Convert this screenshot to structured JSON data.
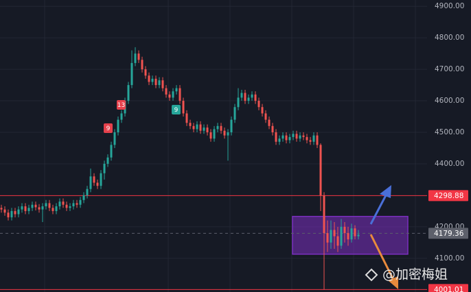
{
  "chart_data": {
    "type": "candlestick",
    "open": [
      4260,
      4255,
      4245,
      4230,
      4250,
      4240,
      4255,
      4265,
      4250,
      4260,
      4270,
      4262,
      4255,
      4265,
      4275,
      4260,
      4250,
      4265,
      4280,
      4270,
      4260,
      4265,
      4275,
      4270,
      4285,
      4300,
      4320,
      4360,
      4340,
      4330,
      4370,
      4400,
      4420,
      4460,
      4500,
      4540,
      4560,
      4600,
      4650,
      4720,
      4750,
      4730,
      4700,
      4680,
      4660,
      4670,
      4650,
      4665,
      4640,
      4620,
      4610,
      4630,
      4640,
      4600,
      4560,
      4530,
      4520,
      4510,
      4525,
      4505,
      4515,
      4500,
      4480,
      4510,
      4520,
      4505,
      4490,
      4500,
      4540,
      4580,
      4610,
      4625,
      4600,
      4610,
      4620,
      4600,
      4580,
      4560,
      4540,
      4520,
      4500,
      4470,
      4480,
      4490,
      4475,
      4485,
      4495,
      4480,
      4490,
      4485,
      4475,
      4470,
      4490,
      4460,
      4300,
      4180,
      4150,
      4190,
      4170,
      4140,
      4200,
      4180,
      4160,
      4195,
      4170
    ],
    "high": [
      4270,
      4265,
      4255,
      4260,
      4260,
      4265,
      4275,
      4275,
      4270,
      4280,
      4280,
      4272,
      4275,
      4285,
      4285,
      4270,
      4275,
      4290,
      4290,
      4280,
      4275,
      4285,
      4285,
      4295,
      4310,
      4330,
      4385,
      4370,
      4350,
      4380,
      4410,
      4430,
      4470,
      4510,
      4550,
      4570,
      4610,
      4660,
      4760,
      4770,
      4760,
      4740,
      4710,
      4690,
      4680,
      4680,
      4675,
      4675,
      4650,
      4630,
      4640,
      4650,
      4650,
      4610,
      4570,
      4540,
      4530,
      4535,
      4535,
      4525,
      4525,
      4510,
      4520,
      4530,
      4530,
      4515,
      4510,
      4550,
      4590,
      4640,
      4635,
      4635,
      4620,
      4630,
      4630,
      4610,
      4590,
      4570,
      4550,
      4530,
      4510,
      4490,
      4500,
      4500,
      4495,
      4505,
      4505,
      4500,
      4500,
      4495,
      4485,
      4500,
      4500,
      4465,
      4310,
      4220,
      4220,
      4215,
      4200,
      4225,
      4215,
      4200,
      4210,
      4205,
      4190
    ],
    "low": [
      4245,
      4235,
      4220,
      4220,
      4230,
      4230,
      4245,
      4240,
      4240,
      4250,
      4252,
      4245,
      4215,
      4255,
      4250,
      4240,
      4240,
      4255,
      4260,
      4250,
      4250,
      4255,
      4260,
      4260,
      4275,
      4290,
      4310,
      4330,
      4320,
      4320,
      4350,
      4390,
      4410,
      4450,
      4490,
      4530,
      4550,
      4590,
      4640,
      4710,
      4720,
      4690,
      4670,
      4650,
      4650,
      4640,
      4640,
      4630,
      4610,
      4600,
      4600,
      4620,
      4590,
      4550,
      4520,
      4510,
      4500,
      4500,
      4495,
      4495,
      4490,
      4470,
      4470,
      4500,
      4495,
      4480,
      4410,
      4490,
      4530,
      4570,
      4600,
      4590,
      4590,
      4600,
      4590,
      4570,
      4550,
      4530,
      4510,
      4490,
      4460,
      4460,
      4470,
      4465,
      4465,
      4475,
      4470,
      4470,
      4475,
      4465,
      4460,
      4460,
      4450,
      4250,
      4001.01,
      4120,
      4130,
      4130,
      4120,
      4130,
      4150,
      4140,
      4150,
      4160,
      4160
    ],
    "close": [
      4255,
      4245,
      4230,
      4250,
      4240,
      4255,
      4265,
      4250,
      4260,
      4270,
      4262,
      4255,
      4265,
      4275,
      4260,
      4250,
      4265,
      4280,
      4270,
      4260,
      4265,
      4275,
      4270,
      4285,
      4300,
      4320,
      4360,
      4340,
      4330,
      4370,
      4400,
      4420,
      4460,
      4500,
      4540,
      4560,
      4600,
      4650,
      4720,
      4750,
      4730,
      4700,
      4680,
      4660,
      4670,
      4650,
      4665,
      4640,
      4620,
      4610,
      4630,
      4640,
      4600,
      4560,
      4530,
      4520,
      4510,
      4525,
      4505,
      4515,
      4500,
      4480,
      4510,
      4520,
      4505,
      4490,
      4500,
      4540,
      4580,
      4610,
      4625,
      4600,
      4610,
      4620,
      4600,
      4580,
      4560,
      4540,
      4520,
      4500,
      4470,
      4480,
      4490,
      4475,
      4485,
      4495,
      4480,
      4490,
      4485,
      4475,
      4470,
      4490,
      4460,
      4300,
      4180,
      4150,
      4190,
      4170,
      4140,
      4200,
      4180,
      4160,
      4195,
      4170,
      4175
    ],
    "up_color": "#26a69a",
    "down_color": "#ef5350",
    "ylim": [
      3993,
      4920
    ],
    "yticks": [
      {
        "value": 4900,
        "label": "4900.00"
      },
      {
        "value": 4800,
        "label": "4800.00"
      },
      {
        "value": 4700,
        "label": "4700.00"
      },
      {
        "value": 4600,
        "label": "4600.00"
      },
      {
        "value": 4500,
        "label": "4500.00"
      },
      {
        "value": 4400,
        "label": "4400.00"
      },
      {
        "value": 4200,
        "label": "4200.00"
      },
      {
        "value": 4100,
        "label": "4100.00"
      }
    ],
    "grid": true,
    "price_lines": [
      {
        "value": 4298.88,
        "color": "#f23645",
        "style": "solid"
      },
      {
        "value": 4179.36,
        "color": "#5d606b",
        "style": "dashed"
      },
      {
        "value": 4001.01,
        "color": "#f23645",
        "style": "solid"
      }
    ],
    "zone": {
      "from": 4113,
      "to": 4233,
      "color": "#7b2fbf"
    },
    "annotations": [
      {
        "text": "9",
        "color": "#e5414c"
      },
      {
        "text": "13",
        "color": "#e5414c"
      },
      {
        "text": "9",
        "color": "#26a69a"
      }
    ],
    "watermark": "@加密梅姐"
  }
}
